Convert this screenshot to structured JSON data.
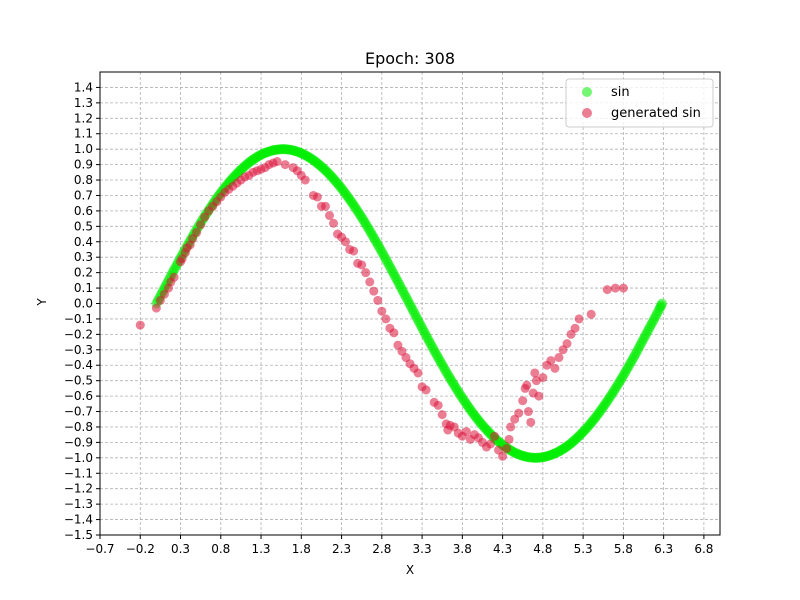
{
  "chart_data": {
    "type": "scatter",
    "title": "Epoch: 308",
    "xlabel": "X",
    "ylabel": "Y",
    "xlim": [
      -0.7,
      7.0
    ],
    "ylim": [
      -1.5,
      1.5
    ],
    "xticks": [
      -0.7,
      -0.2,
      0.3,
      0.8,
      1.3,
      1.8,
      2.3,
      2.8,
      3.3,
      3.8,
      4.3,
      4.8,
      5.3,
      5.8,
      6.3,
      6.8
    ],
    "xtick_labels": [
      "−0.7",
      "−0.2",
      "0.3",
      "0.8",
      "1.3",
      "1.8",
      "2.3",
      "2.8",
      "3.3",
      "3.8",
      "4.3",
      "4.8",
      "5.3",
      "5.8",
      "6.3",
      "6.8"
    ],
    "yticks": [
      1.4,
      1.3,
      1.2,
      1.1,
      1.0,
      0.9,
      0.8,
      0.7,
      0.6,
      0.5,
      0.4,
      0.3,
      0.2,
      0.1,
      0.0,
      -0.1,
      -0.2,
      -0.3,
      -0.4,
      -0.5,
      -0.6,
      -0.7,
      -0.8,
      -0.9,
      -1.0,
      -1.1,
      -1.2,
      -1.3,
      -1.4,
      -1.5
    ],
    "ytick_labels": [
      "1.4",
      "1.3",
      "1.2",
      "1.1",
      "1.0",
      "0.9",
      "0.8",
      "0.7",
      "0.6",
      "0.5",
      "0.4",
      "0.3",
      "0.2",
      "0.1",
      "0.0",
      "−0.1",
      "−0.2",
      "−0.3",
      "−0.4",
      "−0.5",
      "−0.6",
      "−0.7",
      "−0.8",
      "−0.9",
      "−1.0",
      "−1.1",
      "−1.2",
      "−1.3",
      "−1.4",
      "−1.5"
    ],
    "grid": true,
    "legend_position": "top-right",
    "series": [
      {
        "name": "sin",
        "color": "#00ee00",
        "points": [
          [
            0.0,
            0.0
          ],
          [
            0.05,
            0.05
          ],
          [
            0.1,
            0.1
          ],
          [
            0.15,
            0.149
          ],
          [
            0.2,
            0.199
          ],
          [
            0.25,
            0.247
          ],
          [
            0.3,
            0.296
          ],
          [
            0.35,
            0.343
          ],
          [
            0.4,
            0.389
          ],
          [
            0.45,
            0.435
          ],
          [
            0.5,
            0.479
          ],
          [
            0.55,
            0.523
          ],
          [
            0.6,
            0.565
          ],
          [
            0.65,
            0.605
          ],
          [
            0.7,
            0.644
          ],
          [
            0.75,
            0.682
          ],
          [
            0.8,
            0.717
          ],
          [
            0.85,
            0.751
          ],
          [
            0.9,
            0.783
          ],
          [
            0.95,
            0.813
          ],
          [
            1.0,
            0.841
          ],
          [
            1.05,
            0.867
          ],
          [
            1.1,
            0.891
          ],
          [
            1.15,
            0.913
          ],
          [
            1.2,
            0.932
          ],
          [
            1.25,
            0.949
          ],
          [
            1.3,
            0.964
          ],
          [
            1.35,
            0.976
          ],
          [
            1.4,
            0.985
          ],
          [
            1.45,
            0.993
          ],
          [
            1.5,
            0.997
          ],
          [
            1.55,
            1.0
          ],
          [
            1.6,
            1.0
          ],
          [
            1.65,
            0.997
          ],
          [
            1.7,
            0.992
          ],
          [
            1.75,
            0.984
          ],
          [
            1.8,
            0.974
          ],
          [
            1.85,
            0.961
          ],
          [
            1.9,
            0.946
          ],
          [
            1.95,
            0.929
          ],
          [
            2.0,
            0.909
          ],
          [
            2.05,
            0.887
          ],
          [
            2.1,
            0.863
          ],
          [
            2.15,
            0.837
          ],
          [
            2.2,
            0.808
          ],
          [
            2.25,
            0.778
          ],
          [
            2.3,
            0.746
          ],
          [
            2.35,
            0.711
          ],
          [
            2.4,
            0.675
          ],
          [
            2.45,
            0.638
          ],
          [
            2.5,
            0.598
          ],
          [
            2.55,
            0.558
          ],
          [
            2.6,
            0.516
          ],
          [
            2.65,
            0.472
          ],
          [
            2.7,
            0.427
          ],
          [
            2.75,
            0.382
          ],
          [
            2.8,
            0.335
          ],
          [
            2.85,
            0.287
          ],
          [
            2.9,
            0.239
          ],
          [
            2.95,
            0.19
          ],
          [
            3.0,
            0.141
          ],
          [
            3.05,
            0.091
          ],
          [
            3.1,
            0.042
          ],
          [
            3.15,
            -0.008
          ],
          [
            3.2,
            -0.058
          ],
          [
            3.25,
            -0.108
          ],
          [
            3.3,
            -0.158
          ],
          [
            3.35,
            -0.207
          ],
          [
            3.4,
            -0.256
          ],
          [
            3.45,
            -0.304
          ],
          [
            3.5,
            -0.351
          ],
          [
            3.55,
            -0.397
          ],
          [
            3.6,
            -0.443
          ],
          [
            3.65,
            -0.487
          ],
          [
            3.7,
            -0.53
          ],
          [
            3.75,
            -0.572
          ],
          [
            3.8,
            -0.612
          ],
          [
            3.85,
            -0.651
          ],
          [
            3.9,
            -0.688
          ],
          [
            3.95,
            -0.724
          ],
          [
            4.0,
            -0.757
          ],
          [
            4.05,
            -0.789
          ],
          [
            4.1,
            -0.818
          ],
          [
            4.15,
            -0.846
          ],
          [
            4.2,
            -0.872
          ],
          [
            4.25,
            -0.895
          ],
          [
            4.3,
            -0.916
          ],
          [
            4.35,
            -0.935
          ],
          [
            4.4,
            -0.952
          ],
          [
            4.45,
            -0.966
          ],
          [
            4.5,
            -0.978
          ],
          [
            4.55,
            -0.987
          ],
          [
            4.6,
            -0.994
          ],
          [
            4.65,
            -0.998
          ],
          [
            4.7,
            -1.0
          ],
          [
            4.75,
            -0.999
          ],
          [
            4.8,
            -0.996
          ],
          [
            4.85,
            -0.99
          ],
          [
            4.9,
            -0.982
          ],
          [
            4.95,
            -0.971
          ],
          [
            5.0,
            -0.959
          ],
          [
            5.05,
            -0.943
          ],
          [
            5.1,
            -0.926
          ],
          [
            5.15,
            -0.906
          ],
          [
            5.2,
            -0.883
          ],
          [
            5.25,
            -0.859
          ],
          [
            5.3,
            -0.832
          ],
          [
            5.35,
            -0.804
          ],
          [
            5.4,
            -0.773
          ],
          [
            5.45,
            -0.741
          ],
          [
            5.5,
            -0.706
          ],
          [
            5.55,
            -0.67
          ],
          [
            5.6,
            -0.632
          ],
          [
            5.65,
            -0.593
          ],
          [
            5.7,
            -0.552
          ],
          [
            5.75,
            -0.51
          ],
          [
            5.8,
            -0.466
          ],
          [
            5.85,
            -0.421
          ],
          [
            5.9,
            -0.375
          ],
          [
            5.95,
            -0.329
          ],
          [
            6.0,
            -0.279
          ],
          [
            6.05,
            -0.23
          ],
          [
            6.1,
            -0.181
          ],
          [
            6.15,
            -0.132
          ],
          [
            6.2,
            -0.083
          ],
          [
            6.25,
            -0.033
          ],
          [
            6.28,
            0.0
          ]
        ]
      },
      {
        "name": "generated sin",
        "color": "#dc143c",
        "points": [
          [
            -0.2,
            -0.14
          ],
          [
            0.0,
            -0.03
          ],
          [
            0.05,
            0.02
          ],
          [
            0.1,
            0.06
          ],
          [
            0.15,
            0.1
          ],
          [
            0.18,
            0.14
          ],
          [
            0.22,
            0.17
          ],
          [
            0.3,
            0.27
          ],
          [
            0.32,
            0.29
          ],
          [
            0.36,
            0.33
          ],
          [
            0.38,
            0.36
          ],
          [
            0.42,
            0.38
          ],
          [
            0.45,
            0.42
          ],
          [
            0.5,
            0.46
          ],
          [
            0.55,
            0.51
          ],
          [
            0.6,
            0.56
          ],
          [
            0.65,
            0.6
          ],
          [
            0.7,
            0.63
          ],
          [
            0.75,
            0.66
          ],
          [
            0.8,
            0.69
          ],
          [
            0.85,
            0.72
          ],
          [
            0.9,
            0.74
          ],
          [
            0.95,
            0.76
          ],
          [
            1.0,
            0.78
          ],
          [
            1.05,
            0.8
          ],
          [
            1.1,
            0.82
          ],
          [
            1.15,
            0.83
          ],
          [
            1.2,
            0.85
          ],
          [
            1.25,
            0.86
          ],
          [
            1.3,
            0.87
          ],
          [
            1.35,
            0.88
          ],
          [
            1.4,
            0.9
          ],
          [
            1.45,
            0.91
          ],
          [
            1.5,
            0.92
          ],
          [
            1.6,
            0.9
          ],
          [
            1.7,
            0.88
          ],
          [
            1.75,
            0.86
          ],
          [
            1.8,
            0.83
          ],
          [
            1.85,
            0.8
          ],
          [
            1.95,
            0.7
          ],
          [
            2.0,
            0.69
          ],
          [
            2.05,
            0.63
          ],
          [
            2.1,
            0.63
          ],
          [
            2.15,
            0.57
          ],
          [
            2.2,
            0.52
          ],
          [
            2.25,
            0.45
          ],
          [
            2.3,
            0.43
          ],
          [
            2.35,
            0.4
          ],
          [
            2.4,
            0.35
          ],
          [
            2.45,
            0.34
          ],
          [
            2.5,
            0.26
          ],
          [
            2.55,
            0.25
          ],
          [
            2.6,
            0.2
          ],
          [
            2.65,
            0.14
          ],
          [
            2.7,
            0.08
          ],
          [
            2.75,
            0.02
          ],
          [
            2.8,
            -0.05
          ],
          [
            2.85,
            -0.1
          ],
          [
            2.9,
            -0.16
          ],
          [
            2.95,
            -0.19
          ],
          [
            3.0,
            -0.27
          ],
          [
            3.05,
            -0.31
          ],
          [
            3.1,
            -0.35
          ],
          [
            3.15,
            -0.39
          ],
          [
            3.2,
            -0.42
          ],
          [
            3.25,
            -0.45
          ],
          [
            3.3,
            -0.54
          ],
          [
            3.35,
            -0.56
          ],
          [
            3.45,
            -0.64
          ],
          [
            3.5,
            -0.66
          ],
          [
            3.55,
            -0.72
          ],
          [
            3.6,
            -0.78
          ],
          [
            3.62,
            -0.82
          ],
          [
            3.65,
            -0.79
          ],
          [
            3.7,
            -0.8
          ],
          [
            3.75,
            -0.84
          ],
          [
            3.8,
            -0.86
          ],
          [
            3.85,
            -0.83
          ],
          [
            3.9,
            -0.88
          ],
          [
            3.95,
            -0.85
          ],
          [
            4.0,
            -0.87
          ],
          [
            4.05,
            -0.9
          ],
          [
            4.1,
            -0.93
          ],
          [
            4.15,
            -0.91
          ],
          [
            4.2,
            -0.86
          ],
          [
            4.25,
            -0.95
          ],
          [
            4.3,
            -0.99
          ],
          [
            4.35,
            -0.94
          ],
          [
            4.38,
            -0.88
          ],
          [
            4.4,
            -0.8
          ],
          [
            4.45,
            -0.75
          ],
          [
            4.5,
            -0.71
          ],
          [
            4.55,
            -0.63
          ],
          [
            4.58,
            -0.55
          ],
          [
            4.6,
            -0.53
          ],
          [
            4.62,
            -0.7
          ],
          [
            4.65,
            -0.77
          ],
          [
            4.68,
            -0.58
          ],
          [
            4.7,
            -0.45
          ],
          [
            4.72,
            -0.5
          ],
          [
            4.75,
            -0.6
          ],
          [
            4.8,
            -0.48
          ],
          [
            4.85,
            -0.4
          ],
          [
            4.9,
            -0.37
          ],
          [
            4.95,
            -0.42
          ],
          [
            5.0,
            -0.35
          ],
          [
            5.05,
            -0.3
          ],
          [
            5.1,
            -0.26
          ],
          [
            5.15,
            -0.2
          ],
          [
            5.2,
            -0.16
          ],
          [
            5.25,
            -0.1
          ],
          [
            5.4,
            -0.07
          ],
          [
            5.6,
            0.09
          ],
          [
            5.7,
            0.1
          ],
          [
            5.8,
            0.1
          ]
        ]
      }
    ]
  }
}
